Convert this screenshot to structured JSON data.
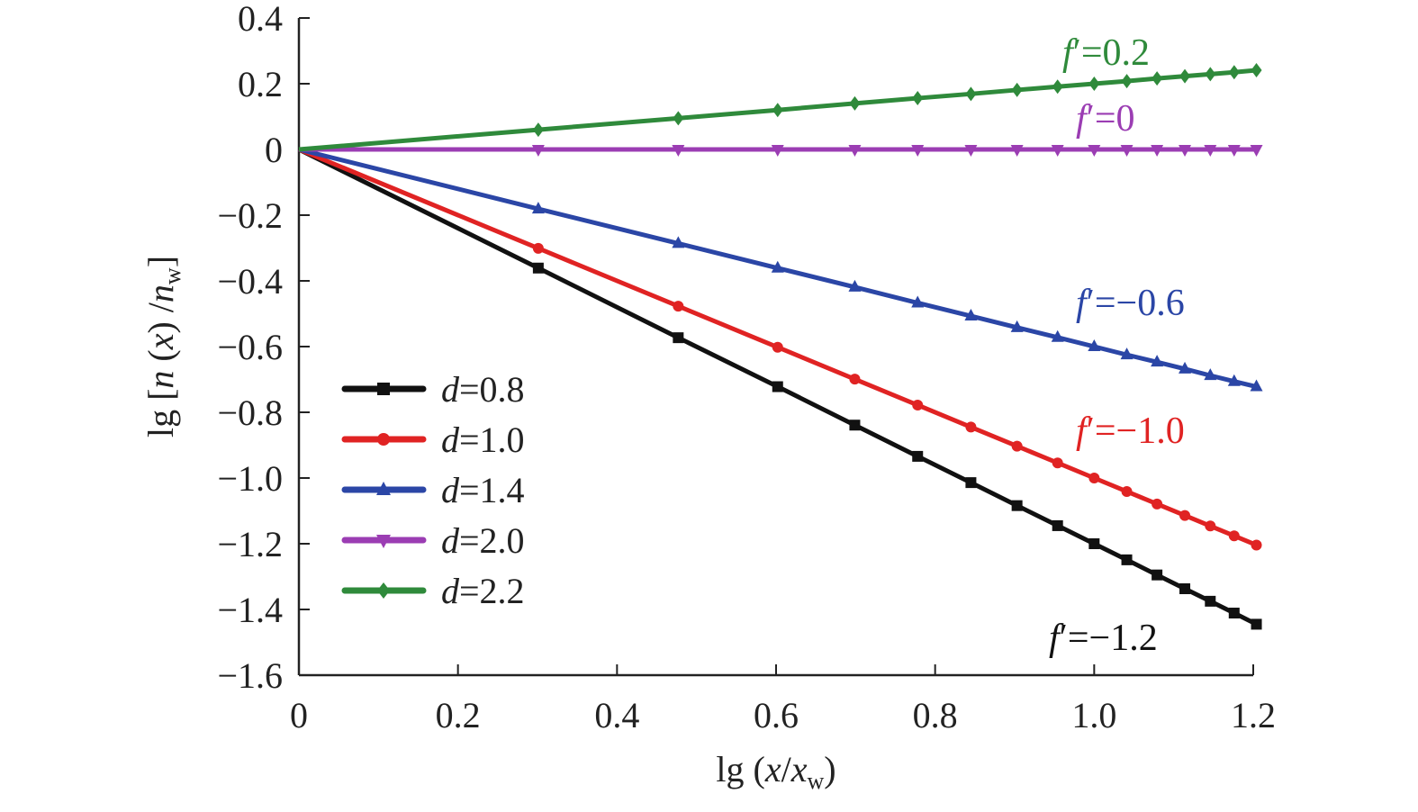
{
  "chart_data": {
    "type": "line",
    "title": "",
    "xlabel_parts": [
      "lg (",
      "x",
      "/",
      "x",
      "w",
      ")"
    ],
    "ylabel_parts": [
      "lg [",
      "n",
      " (",
      "x",
      ") /",
      "n",
      "w",
      "]"
    ],
    "xlim": [
      0,
      1.2
    ],
    "ylim": [
      -1.6,
      0.4
    ],
    "xticks": [
      0,
      0.2,
      0.4,
      0.6,
      0.8,
      1.0,
      1.2
    ],
    "xtick_labels": [
      "0",
      "0.2",
      "0.4",
      "0.6",
      "0.8",
      "1.0",
      "1.2"
    ],
    "yticks": [
      0.4,
      0.2,
      0,
      -0.2,
      -0.4,
      -0.6,
      -0.8,
      -1.0,
      -1.2,
      -1.4,
      -1.6
    ],
    "ytick_labels": [
      "0.4",
      "0.2",
      "0",
      "−0.2",
      "−0.4",
      "−0.6",
      "−0.8",
      "−1.0",
      "−1.2",
      "−1.4",
      "−1.6"
    ],
    "grid": false,
    "legend_position": "lower-left",
    "x": [
      0,
      0.301,
      0.477,
      0.602,
      0.699,
      0.778,
      0.845,
      0.903,
      0.954,
      1.0,
      1.041,
      1.079,
      1.114,
      1.146,
      1.176,
      1.204
    ],
    "series": [
      {
        "name": "d=0.8",
        "d_label": "d",
        "value_label": "=0.8",
        "slope": -1.2,
        "color": "#111111",
        "marker": "square",
        "values": [
          0,
          -0.361,
          -0.573,
          -0.722,
          -0.839,
          -0.934,
          -1.014,
          -1.084,
          -1.145,
          -1.2,
          -1.249,
          -1.295,
          -1.337,
          -1.375,
          -1.411,
          -1.445
        ],
        "annotation": {
          "f": "f",
          "text": "′=−1.2"
        }
      },
      {
        "name": "d=1.0",
        "d_label": "d",
        "value_label": "=1.0",
        "slope": -1.0,
        "color": "#e02323",
        "marker": "circle",
        "values": [
          0,
          -0.301,
          -0.477,
          -0.602,
          -0.699,
          -0.778,
          -0.845,
          -0.903,
          -0.954,
          -1.0,
          -1.041,
          -1.079,
          -1.114,
          -1.146,
          -1.176,
          -1.204
        ],
        "annotation": {
          "f": "f",
          "text": "′=−1.0"
        }
      },
      {
        "name": "d=1.4",
        "d_label": "d",
        "value_label": "=1.4",
        "slope": -0.6,
        "color": "#2b46a6",
        "marker": "triangle-up",
        "values": [
          0,
          -0.181,
          -0.286,
          -0.361,
          -0.419,
          -0.467,
          -0.507,
          -0.542,
          -0.572,
          -0.6,
          -0.625,
          -0.647,
          -0.668,
          -0.688,
          -0.706,
          -0.722
        ],
        "annotation": {
          "f": "f",
          "text": "′=−0.6"
        }
      },
      {
        "name": "d=2.0",
        "d_label": "d",
        "value_label": "=2.0",
        "slope": 0,
        "color": "#9b3db3",
        "marker": "triangle-down",
        "values": [
          0,
          0,
          0,
          0,
          0,
          0,
          0,
          0,
          0,
          0,
          0,
          0,
          0,
          0,
          0,
          0
        ],
        "annotation": {
          "f": "f",
          "text": "′=0"
        }
      },
      {
        "name": "d=2.2",
        "d_label": "d",
        "value_label": "=2.2",
        "slope": 0.2,
        "color": "#2f8a3b",
        "marker": "diamond",
        "values": [
          0,
          0.06,
          0.095,
          0.12,
          0.14,
          0.156,
          0.169,
          0.181,
          0.191,
          0.2,
          0.208,
          0.216,
          0.223,
          0.229,
          0.235,
          0.241
        ],
        "annotation": {
          "f": "f",
          "text": "′=0.2"
        }
      }
    ]
  }
}
